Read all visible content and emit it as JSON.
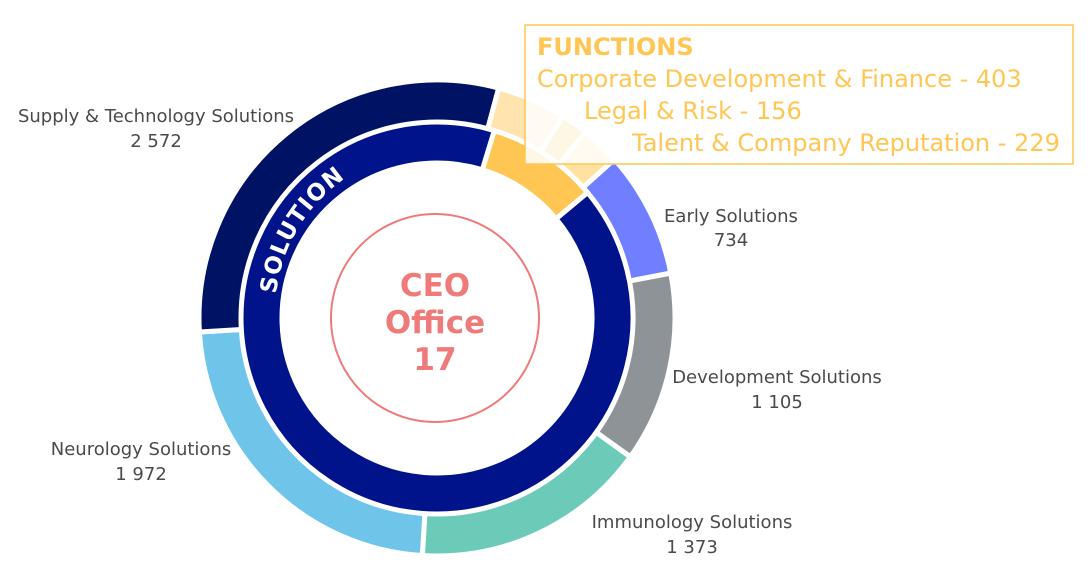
{
  "chart_data": {
    "type": "pie",
    "subtype": "nested-donut",
    "center": {
      "line1": "CEO",
      "line2": "Office",
      "value": "17"
    },
    "inner_ring": [
      {
        "name": "FUNCTIONS",
        "value": 788,
        "color": "#ffc653"
      },
      {
        "name": "SOLUTIONS",
        "value": 7756,
        "color": "#00138a"
      }
    ],
    "inner_ring_label": "SOLUTIONS",
    "outer_ring": [
      {
        "name": "Corporate Development & Finance",
        "value_label": "403",
        "value": 403,
        "color": "#ffe4b0"
      },
      {
        "name": "Legal & Risk",
        "value_label": "156",
        "value": 156,
        "color": "#ffc653"
      },
      {
        "name": "Talent & Company Reputation",
        "value_label": "229",
        "value": 229,
        "color": "#ffe2a0"
      },
      {
        "name": "Early Solutions",
        "value_label": "734",
        "value": 734,
        "color": "#6f7fff"
      },
      {
        "name": "Development Solutions",
        "value_label": "1 105",
        "value": 1105,
        "color": "#8e9398"
      },
      {
        "name": "Immunology Solutions",
        "value_label": "1 373",
        "value": 1373,
        "color": "#6ccbb8"
      },
      {
        "name": "Neurology Solutions",
        "value_label": "1 972",
        "value": 1972,
        "color": "#6fc4ea"
      },
      {
        "name": "Supply & Technology Solutions",
        "value_label": "2 572",
        "value": 2572,
        "color": "#001263"
      }
    ],
    "functions_box": {
      "title": "FUNCTIONS",
      "lines": [
        "Corporate Development & Finance - 403",
        "Legal & Risk - 156",
        "Talent & Company Reputation - 229"
      ]
    }
  }
}
